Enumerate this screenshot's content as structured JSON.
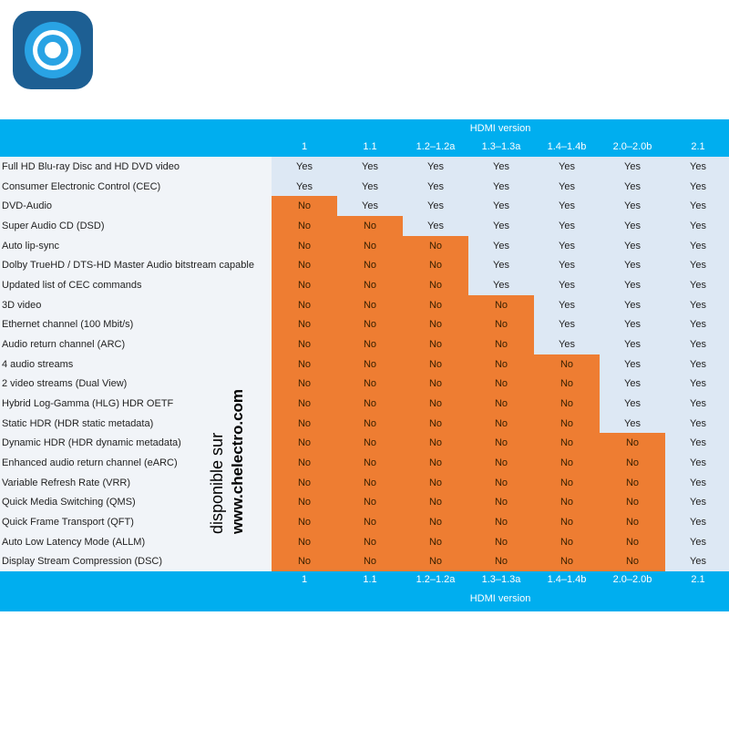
{
  "logo": {
    "icon": "target-ring-logo-icon",
    "colors": {
      "background": "#1d5f93",
      "ring": "#29a3e4"
    }
  },
  "header": {
    "title": "HDMI version"
  },
  "footer": {
    "title": "HDMI version"
  },
  "versions": [
    "1",
    "1.1",
    "1.2–1.2a",
    "1.3–1.3a",
    "1.4–1.4b",
    "2.0–2.0b",
    "2.1"
  ],
  "colors": {
    "band": "#00aeef",
    "yes": "#dde8f4",
    "no": "#ee7d32",
    "feature_bg": "#f1f4f8"
  },
  "rows": [
    {
      "feature": "Full HD Blu-ray Disc and HD DVD video",
      "values": [
        "Yes",
        "Yes",
        "Yes",
        "Yes",
        "Yes",
        "Yes",
        "Yes"
      ]
    },
    {
      "feature": "Consumer Electronic Control (CEC)",
      "values": [
        "Yes",
        "Yes",
        "Yes",
        "Yes",
        "Yes",
        "Yes",
        "Yes"
      ]
    },
    {
      "feature": "DVD-Audio",
      "values": [
        "No",
        "Yes",
        "Yes",
        "Yes",
        "Yes",
        "Yes",
        "Yes"
      ]
    },
    {
      "feature": "Super Audio CD (DSD)",
      "values": [
        "No",
        "No",
        "Yes",
        "Yes",
        "Yes",
        "Yes",
        "Yes"
      ]
    },
    {
      "feature": "Auto lip-sync",
      "values": [
        "No",
        "No",
        "No",
        "Yes",
        "Yes",
        "Yes",
        "Yes"
      ]
    },
    {
      "feature": "Dolby TrueHD / DTS-HD Master Audio bitstream capable",
      "values": [
        "No",
        "No",
        "No",
        "Yes",
        "Yes",
        "Yes",
        "Yes"
      ]
    },
    {
      "feature": "Updated list of CEC commands",
      "values": [
        "No",
        "No",
        "No",
        "Yes",
        "Yes",
        "Yes",
        "Yes"
      ]
    },
    {
      "feature": "3D video",
      "values": [
        "No",
        "No",
        "No",
        "No",
        "Yes",
        "Yes",
        "Yes"
      ]
    },
    {
      "feature": "Ethernet channel (100 Mbit/s)",
      "values": [
        "No",
        "No",
        "No",
        "No",
        "Yes",
        "Yes",
        "Yes"
      ]
    },
    {
      "feature": "Audio return channel (ARC)",
      "values": [
        "No",
        "No",
        "No",
        "No",
        "Yes",
        "Yes",
        "Yes"
      ]
    },
    {
      "feature": "4 audio streams",
      "values": [
        "No",
        "No",
        "No",
        "No",
        "No",
        "Yes",
        "Yes"
      ]
    },
    {
      "feature": "2 video streams (Dual View)",
      "values": [
        "No",
        "No",
        "No",
        "No",
        "No",
        "Yes",
        "Yes"
      ]
    },
    {
      "feature": "Hybrid Log-Gamma (HLG) HDR OETF",
      "values": [
        "No",
        "No",
        "No",
        "No",
        "No",
        "Yes",
        "Yes"
      ]
    },
    {
      "feature": "Static HDR (HDR static metadata)",
      "values": [
        "No",
        "No",
        "No",
        "No",
        "No",
        "Yes",
        "Yes"
      ]
    },
    {
      "feature": "Dynamic HDR (HDR dynamic metadata)",
      "values": [
        "No",
        "No",
        "No",
        "No",
        "No",
        "No",
        "Yes"
      ]
    },
    {
      "feature": "Enhanced audio return channel (eARC)",
      "values": [
        "No",
        "No",
        "No",
        "No",
        "No",
        "No",
        "Yes"
      ]
    },
    {
      "feature": "Variable Refresh Rate (VRR)",
      "values": [
        "No",
        "No",
        "No",
        "No",
        "No",
        "No",
        "Yes"
      ]
    },
    {
      "feature": "Quick Media Switching (QMS)",
      "values": [
        "No",
        "No",
        "No",
        "No",
        "No",
        "No",
        "Yes"
      ]
    },
    {
      "feature": "Quick Frame Transport (QFT)",
      "values": [
        "No",
        "No",
        "No",
        "No",
        "No",
        "No",
        "Yes"
      ]
    },
    {
      "feature": "Auto Low Latency Mode (ALLM)",
      "values": [
        "No",
        "No",
        "No",
        "No",
        "No",
        "No",
        "Yes"
      ]
    },
    {
      "feature": "Display Stream Compression (DSC)",
      "values": [
        "No",
        "No",
        "No",
        "No",
        "No",
        "No",
        "Yes"
      ]
    }
  ],
  "watermark": {
    "line1": "disponible sur",
    "line2": "www.chelectro.com"
  }
}
